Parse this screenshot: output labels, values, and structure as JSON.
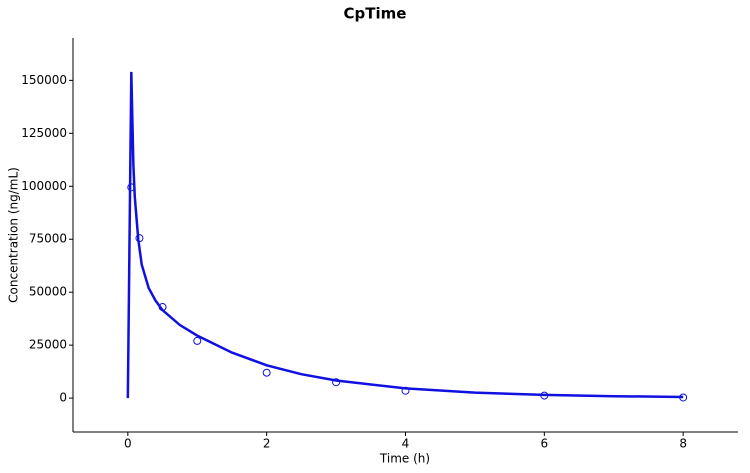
{
  "chart_data": {
    "type": "line",
    "title": "CpTime",
    "x_label": "Time (h)",
    "y_label": "Concentration (ng/mL)",
    "xlim": [
      -0.79,
      8.79
    ],
    "xticks": [
      0,
      2,
      4,
      6,
      8
    ],
    "ylim": [
      -16000,
      170000
    ],
    "yticks": [
      0,
      25000,
      50000,
      75000,
      100000,
      125000,
      150000
    ],
    "grid": false,
    "series": [
      {
        "type": "line",
        "color": "#1010e0",
        "x": [
          0,
          0.05,
          0.08,
          0.1,
          0.15,
          0.2,
          0.3,
          0.4,
          0.5,
          0.75,
          1,
          1.5,
          2,
          2.5,
          3,
          4,
          5,
          6,
          7,
          8
        ],
        "values": [
          0,
          154000,
          110000,
          95000,
          75000,
          63000,
          52000,
          46000,
          41500,
          34500,
          29500,
          21500,
          15500,
          11300,
          8300,
          4600,
          2600,
          1500,
          900,
          550
        ]
      },
      {
        "type": "scatter",
        "color": "#1010e0",
        "x": [
          0.05,
          0.167,
          0.5,
          1,
          2,
          3,
          4,
          6,
          8
        ],
        "values": [
          99500,
          75500,
          43000,
          27000,
          12000,
          7500,
          3500,
          1200,
          300
        ]
      }
    ]
  }
}
